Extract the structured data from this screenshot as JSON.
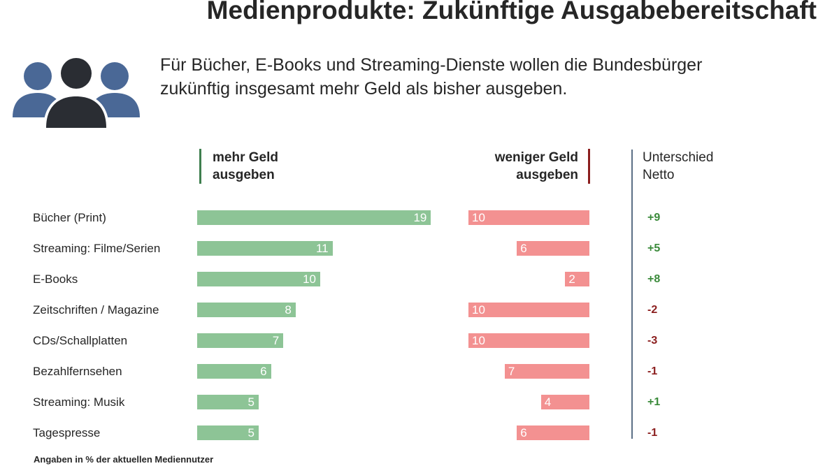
{
  "header": {
    "title": "Medienprodukte: Zukünftige Ausgabebereitschaft",
    "subtitle_line1": "Für Bücher, E-Books und Streaming-Dienste wollen die Bundesbürger",
    "subtitle_line2": "zukünftig insgesamt mehr Geld als bisher ausgeben."
  },
  "icon": {
    "name": "people-group-icon"
  },
  "colors": {
    "more_bar": "#8dc496",
    "less_bar": "#f39191",
    "positive_text": "#3a8a3a",
    "negative_text": "#8b1e1e"
  },
  "chart_data": {
    "type": "bar",
    "title": "Medienprodukte: Zukünftige Ausgabebereitschaft",
    "column_headers": {
      "more_line1": "mehr Geld",
      "more_line2": "ausgeben",
      "less_line1": "weniger Geld",
      "less_line2": "ausgeben",
      "net_line1": "Unterschied",
      "net_line2": "Netto"
    },
    "categories": [
      "Bücher (Print)",
      "Streaming: Filme/Serien",
      "E-Books",
      "Zeitschriften / Magazine",
      "CDs/Schallplatten",
      "Bezahlfernsehen",
      "Streaming: Musik",
      "Tagespresse"
    ],
    "series": [
      {
        "name": "mehr Geld ausgeben",
        "values": [
          19,
          11,
          10,
          8,
          7,
          6,
          5,
          5
        ]
      },
      {
        "name": "weniger Geld ausgeben",
        "values": [
          10,
          6,
          2,
          10,
          10,
          7,
          4,
          6
        ]
      }
    ],
    "net": [
      "+9",
      "+5",
      "+8",
      "-2",
      "-3",
      "-1",
      "+1",
      "-1"
    ],
    "unit": "%",
    "footnote": "Angaben in % der aktuellen Mediennutzer"
  }
}
